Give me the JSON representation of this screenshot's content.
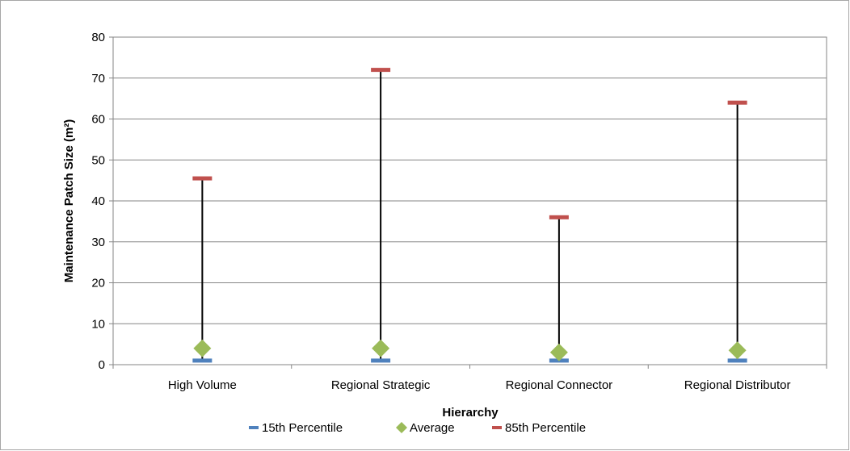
{
  "chart_data": {
    "type": "scatter",
    "xlabel": "Hierarchy",
    "ylabel": "Maintenance Patch Size (m²)",
    "ylim": [
      0,
      80
    ],
    "yticks": [
      0,
      10,
      20,
      30,
      40,
      50,
      60,
      70,
      80
    ],
    "grid": true,
    "legend_position": "bottom",
    "categories": [
      "High Volume",
      "Regional Strategic",
      "Regional Connector",
      "Regional Distributor"
    ],
    "series": [
      {
        "name": "15th Percentile",
        "values": [
          1,
          1,
          1,
          1
        ],
        "color": "#4f81bd",
        "marker": "dash"
      },
      {
        "name": "Average",
        "values": [
          4,
          4,
          3,
          3.5
        ],
        "color": "#9bbb59",
        "marker": "diamond"
      },
      {
        "name": "85th Percentile",
        "values": [
          45.5,
          72,
          36,
          64
        ],
        "color": "#c0504d",
        "marker": "dash"
      }
    ],
    "high_low_lines": true
  }
}
